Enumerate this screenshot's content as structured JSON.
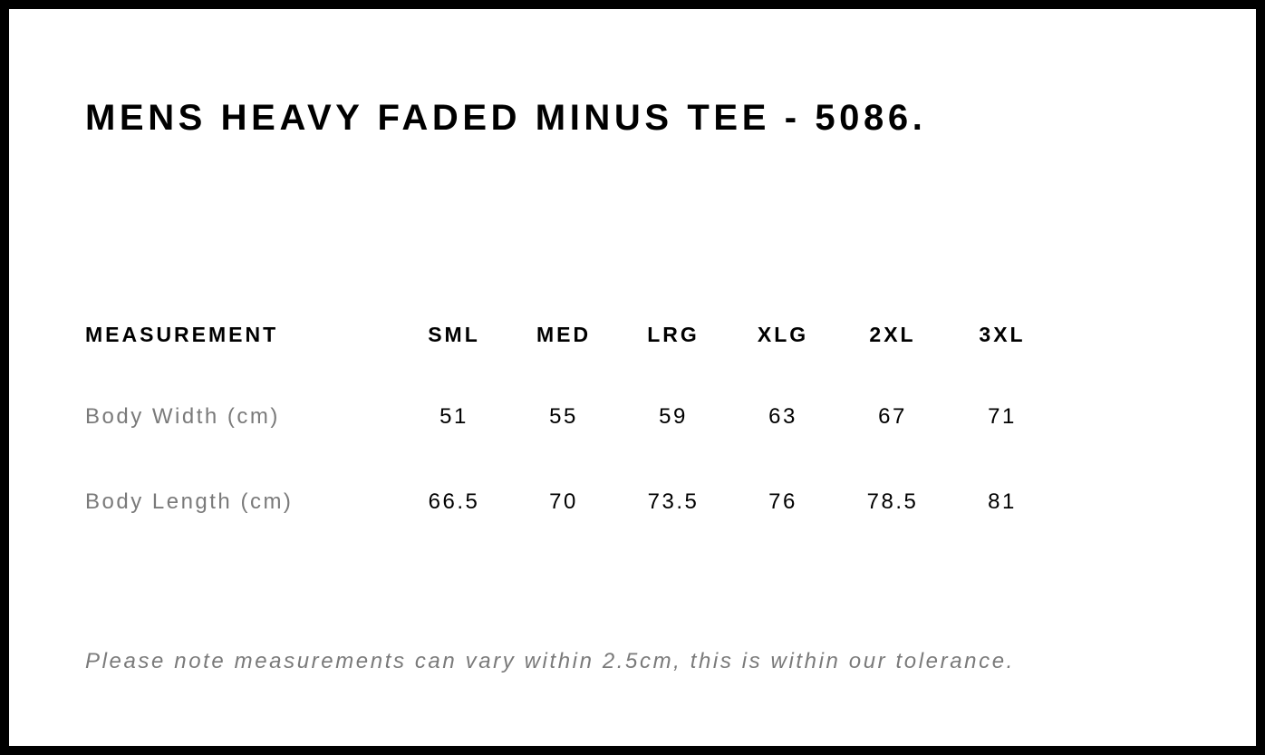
{
  "title": "MENS HEAVY FADED MINUS TEE - 5086.",
  "table": {
    "headers": [
      "MEASUREMENT",
      "SML",
      "MED",
      "LRG",
      "XLG",
      "2XL",
      "3XL"
    ],
    "rows": [
      {
        "label": "Body Width (cm)",
        "values": [
          "51",
          "55",
          "59",
          "63",
          "67",
          "71"
        ]
      },
      {
        "label": "Body Length (cm)",
        "values": [
          "66.5",
          "70",
          "73.5",
          "76",
          "78.5",
          "81"
        ]
      }
    ]
  },
  "note": "Please note measurements can vary within 2.5cm, this is within our tolerance."
}
